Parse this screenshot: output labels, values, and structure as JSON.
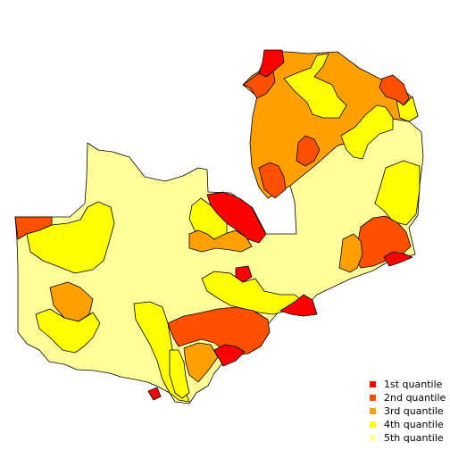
{
  "colors": {
    "q1": "#ff0000",
    "q2": "#ff5000",
    "q3": "#ffa000",
    "q4": "#ffff00",
    "q5": "#ffff99",
    "border": "#000000",
    "background": "#ffffff"
  },
  "legend": {
    "items": [
      {
        "label": "1st quantile",
        "color": "#ff0000"
      },
      {
        "label": "2nd quantile",
        "color": "#ff5000"
      },
      {
        "label": "3rd quantile",
        "color": "#ffa000"
      },
      {
        "label": "4th quantile",
        "color": "#ffff00"
      },
      {
        "label": "5th quantile",
        "color": "#ffff99"
      }
    ]
  }
}
